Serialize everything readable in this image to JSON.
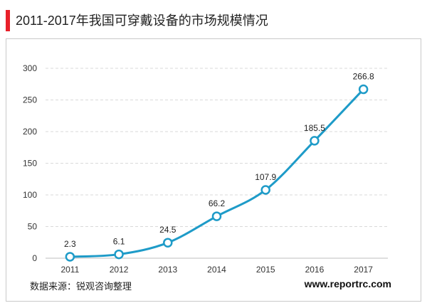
{
  "title": "2011-2017年我国可穿戴设备的市场规模情况",
  "source_text": "数据来源：锐观咨询整理",
  "website": "www.reportrc.com",
  "colors": {
    "accent": "#e8202a",
    "line": "#1e9bc8",
    "grid": "#d9d9d9"
  },
  "chart_data": {
    "type": "line",
    "title": "2011-2017年我国可穿戴设备的市场规模情况",
    "categories": [
      "2011",
      "2012",
      "2013",
      "2014",
      "2015",
      "2016",
      "2017"
    ],
    "values": [
      2.3,
      6.1,
      24.5,
      66.2,
      107.9,
      185.5,
      266.8
    ],
    "labels": [
      "2.3",
      "6.1",
      "24.5",
      "66.2",
      "107.9",
      "185.5",
      "266.8"
    ],
    "ylim": [
      0,
      300
    ],
    "yticks": [
      0,
      50,
      100,
      150,
      200,
      250,
      300
    ],
    "xlabel": "",
    "ylabel": "",
    "grid": true,
    "smooth": true
  }
}
